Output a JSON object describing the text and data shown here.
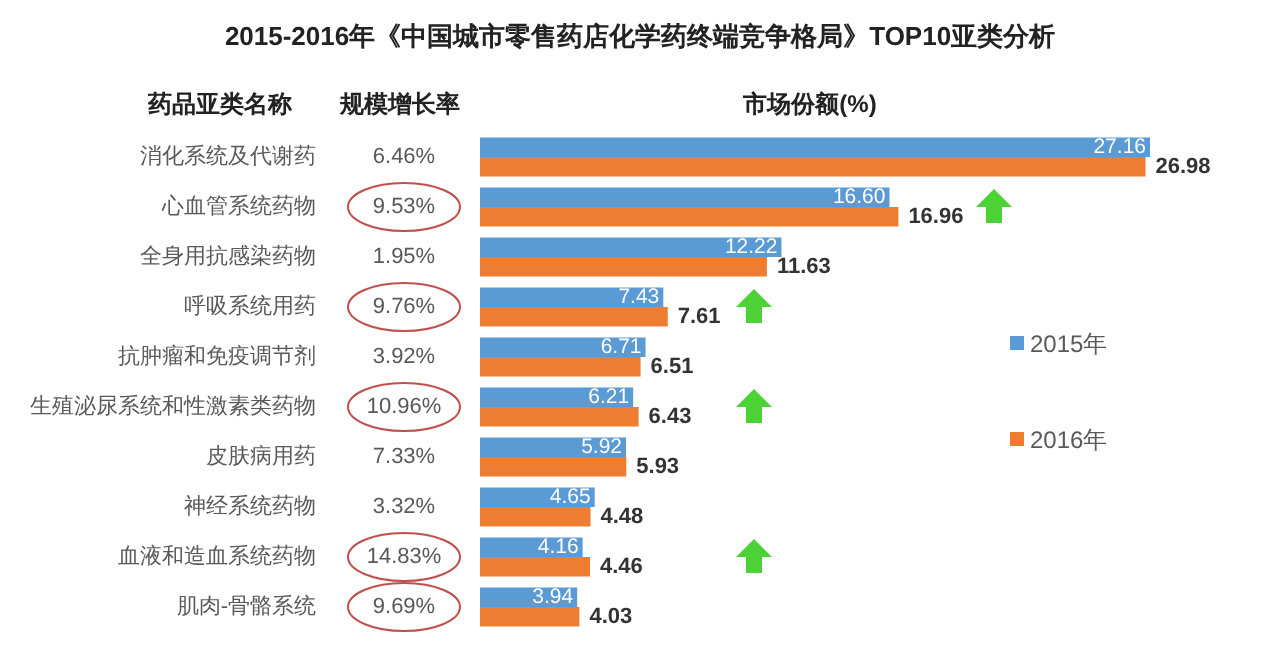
{
  "chart_data": {
    "type": "bar",
    "orientation": "horizontal",
    "title": "2015-2016年《中国城市零售药店化学药终端竞争格局》TOP10亚类分析",
    "ylabel": "药品亚类名称",
    "xlabel": "市场份额(%)",
    "categories": [
      "消化系统及代谢药",
      "心血管系统药物",
      "全身用抗感染药物",
      "呼吸系统用药",
      "抗肿瘤和免疫调节剂",
      "生殖泌尿系统和性激素类药物",
      "皮肤病用药",
      "神经系统药物",
      "血液和造血系统药物",
      "肌肉-骨骼系统"
    ],
    "series": [
      {
        "name": "2015年",
        "color": "#5b9bd5",
        "values": [
          27.16,
          16.6,
          12.22,
          7.43,
          6.71,
          6.21,
          5.92,
          4.65,
          4.16,
          3.94
        ],
        "value_labels": [
          "27.16",
          "16.60",
          "12.22",
          "7.43",
          "6.71",
          "6.21",
          "5.92",
          "4.65",
          "4.16",
          "3.94"
        ]
      },
      {
        "name": "2016年",
        "color": "#ed7d31",
        "values": [
          26.98,
          16.96,
          11.63,
          7.61,
          6.51,
          6.43,
          5.93,
          4.48,
          4.46,
          4.03
        ],
        "value_labels": [
          "26.98",
          "16.96",
          "11.63",
          "7.61",
          "6.51",
          "6.43",
          "5.93",
          "4.48",
          "4.46",
          "4.03"
        ]
      }
    ],
    "legend": "right",
    "annotations": [
      "规模增长率",
      "6.46%",
      "9.53%",
      "1.95%",
      "9.76%",
      "3.92%",
      "10.96%",
      "7.33%",
      "3.32%",
      "14.83%",
      "9.69%"
    ]
  }
}
